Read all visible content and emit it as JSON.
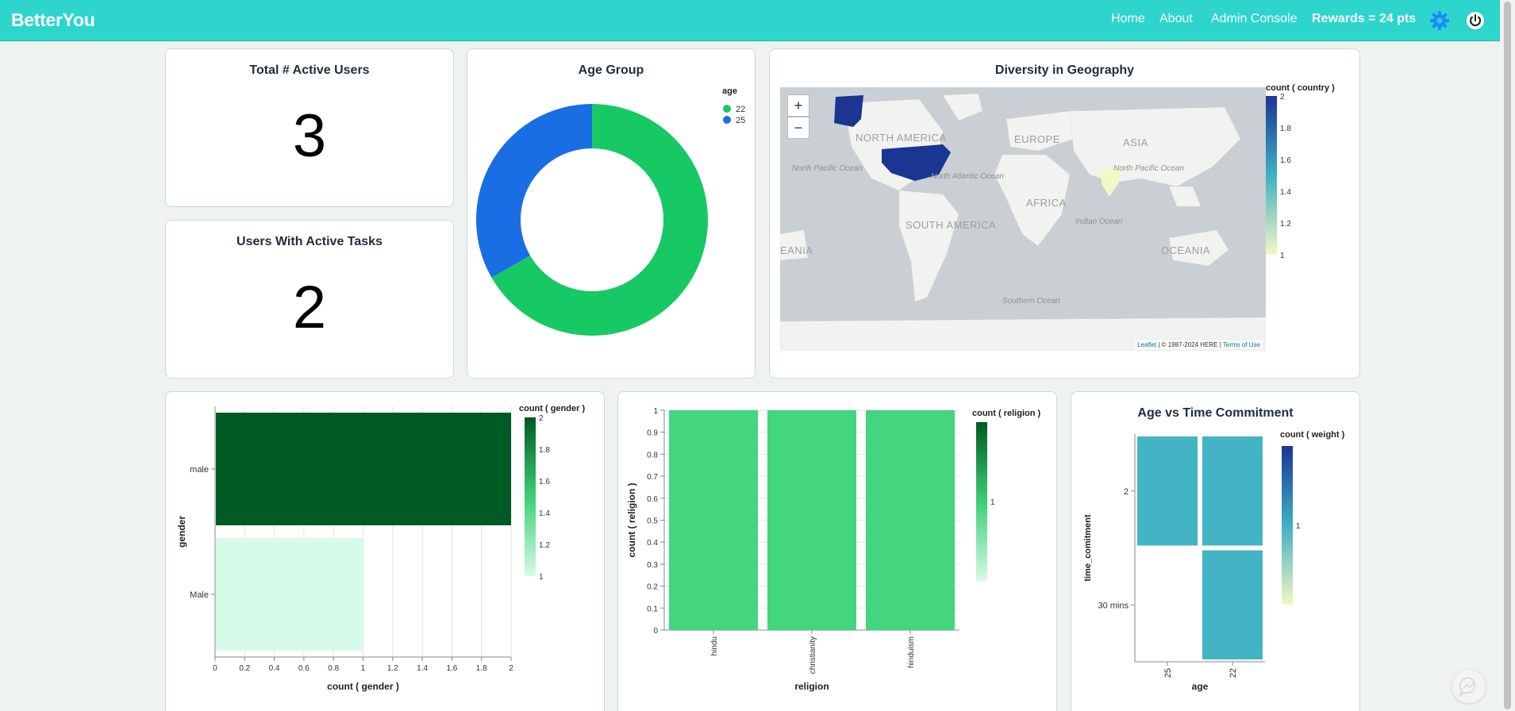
{
  "app": {
    "brand": "BetterYou"
  },
  "nav": {
    "home": "Home",
    "about": "About",
    "admin": "Admin Console",
    "rewards": "Rewards = 24 pts",
    "settings_icon": "gear-icon",
    "power_icon": "power-icon"
  },
  "colors": {
    "accent": "#2dd5cd",
    "green": "#17c964",
    "blue": "#1a6ee3",
    "navy": "#1b3593"
  },
  "stats": {
    "active_users": {
      "title": "Total # Active Users",
      "value": "3"
    },
    "active_tasks": {
      "title": "Users With Active Tasks",
      "value": "2"
    }
  },
  "age_chart": {
    "title": "Age Group",
    "legend_title": "age",
    "chart_data": {
      "type": "pie",
      "title": "Age Group",
      "legend_title": "age",
      "categories": [
        "22",
        "25"
      ],
      "values": [
        2,
        1
      ]
    }
  },
  "geo_chart": {
    "title": "Diversity in Geography",
    "legend_title": "count ( country )",
    "legend_ticks": [
      "2",
      "1.8",
      "1.6",
      "1.4",
      "1.2",
      "1"
    ],
    "zoom_in": "+",
    "zoom_out": "−",
    "labels": {
      "north_america": "NORTH AMERICA",
      "europe": "EUROPE",
      "asia": "ASIA",
      "africa": "AFRICA",
      "south_america": "SOUTH AMERICA",
      "oceania_left": "EANIA",
      "oceania_right": "OCEANIA",
      "north_pacific_left": "North Pacific Ocean",
      "north_atlantic": "North Atlantic Ocean",
      "north_pacific_right": "North Pacific Ocean",
      "indian_ocean": "Indian Ocean",
      "southern_ocean": "Southern Ocean"
    },
    "attribution": {
      "leaflet": "Leaflet",
      "here": " | © 1987-2024 HERE | ",
      "terms": "Terms of Use"
    },
    "chart_data": {
      "type": "map",
      "legend_title": "count ( country )",
      "regions": [
        "USA",
        "India"
      ],
      "values": [
        2,
        1
      ],
      "scale": [
        1,
        2
      ]
    }
  },
  "gender_chart": {
    "title": "",
    "chart_data": {
      "type": "bar",
      "orientation": "horizontal",
      "categories": [
        "male",
        "Male"
      ],
      "values": [
        2,
        1
      ],
      "xlabel": "count ( gender )",
      "ylabel": "gender",
      "xlim": [
        0,
        2
      ],
      "x_ticks": [
        "0",
        "0.2",
        "0.4",
        "0.6",
        "0.8",
        "1",
        "1.2",
        "1.4",
        "1.6",
        "1.8",
        "2"
      ],
      "legend_title": "count ( gender )",
      "legend_ticks": [
        "2",
        "1.8",
        "1.6",
        "1.4",
        "1.2",
        "1"
      ]
    }
  },
  "religion_chart": {
    "title": "",
    "chart_data": {
      "type": "bar",
      "categories": [
        "hindu",
        "christianity",
        "hinduism"
      ],
      "values": [
        1,
        1,
        1
      ],
      "xlabel": "religion",
      "ylabel": "count ( religion )",
      "ylim": [
        0,
        1
      ],
      "y_ticks": [
        "0",
        "0.1",
        "0.2",
        "0.3",
        "0.4",
        "0.5",
        "0.6",
        "0.7",
        "0.8",
        "0.9",
        "1"
      ],
      "legend_title": "count ( religion )",
      "legend_ticks": [
        "1"
      ]
    }
  },
  "time_chart": {
    "title": "Age vs Time Commitment",
    "chart_data": {
      "type": "heatmap",
      "title": "Age vs Time Commitment",
      "x_categories": [
        "25",
        "22"
      ],
      "y_categories": [
        "2",
        "30 mins"
      ],
      "cells": [
        {
          "x": "25",
          "y": "2",
          "value": 1
        },
        {
          "x": "22",
          "y": "2",
          "value": 1
        },
        {
          "x": "22",
          "y": "30 mins",
          "value": 1
        }
      ],
      "xlabel": "age",
      "ylabel": "time_comitment",
      "legend_title": "count ( weight )",
      "legend_ticks": [
        "1"
      ]
    }
  }
}
